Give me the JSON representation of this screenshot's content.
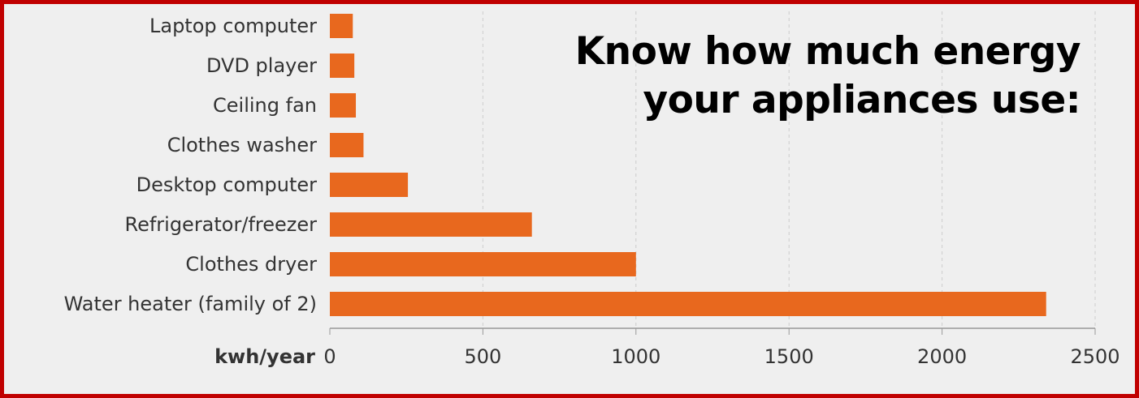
{
  "headline": {
    "line1": "Know how much energy",
    "line2": "your appliances use:"
  },
  "colors": {
    "bar": "#e8681e",
    "border": "#c00000",
    "background": "#efefef",
    "grid": "#cccccc"
  },
  "chart_data": {
    "type": "bar",
    "orientation": "horizontal",
    "categories": [
      "Laptop computer",
      "DVD player",
      "Ceiling fan",
      "Clothes washer",
      "Desktop computer",
      "Refrigerator/freezer",
      "Clothes dryer",
      "Water heater (family of 2)"
    ],
    "values": [
      75,
      80,
      85,
      110,
      255,
      660,
      1000,
      2340
    ],
    "xlabel": "kwh/year",
    "xlim": [
      0,
      2500
    ],
    "xticks": [
      "0",
      "500",
      "1000",
      "1500",
      "2000",
      "2500"
    ],
    "grid": "vertical dashed",
    "legend": "none"
  }
}
